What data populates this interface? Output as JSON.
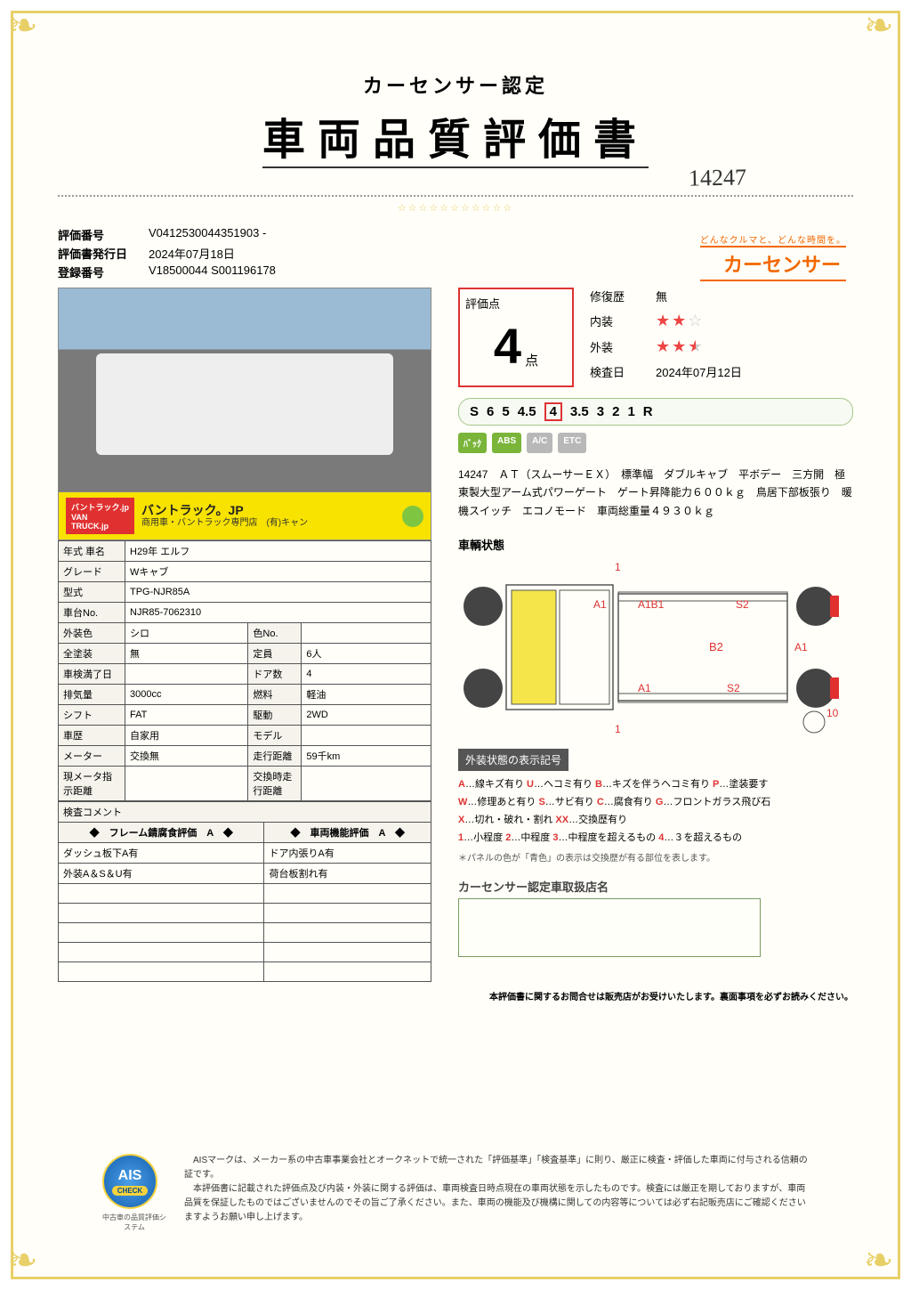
{
  "doc": {
    "subtitle": "カーセンサー認定",
    "title": "車両品質評価書",
    "handwritten": "14247",
    "stars_divider": "☆☆☆☆☆☆☆☆☆☆☆"
  },
  "brand": {
    "tagline": "どんなクルマと、どんな時間を。",
    "logo": "カーセンサー"
  },
  "meta": {
    "eval_no_label": "評価番号",
    "eval_no": "V0412530044351903 -",
    "issue_label": "評価書発行日",
    "issue_date": "2024年07月18日",
    "reg_label": "登録番号",
    "reg_no": "V18500044 S001196178"
  },
  "banner": {
    "logo_top": "バントラック.jp",
    "logo_main": "VAN",
    "logo_sub": "TRUCK.jp",
    "jp": "バントラック。JP",
    "sub": "商用車・バントラック専門店　(有)キャン"
  },
  "spec": {
    "rows": [
      [
        "年式 車名",
        "H29年 エルフ",
        "",
        ""
      ],
      [
        "グレード",
        "Wキャブ",
        "",
        ""
      ],
      [
        "型式",
        "TPG-NJR85A",
        "",
        ""
      ],
      [
        "車台No.",
        "NJR85-7062310",
        "",
        ""
      ],
      [
        "外装色",
        "シロ",
        "色No.",
        ""
      ],
      [
        "全塗装",
        "無",
        "定員",
        "6人"
      ],
      [
        "車検満了日",
        "",
        "ドア数",
        "4"
      ],
      [
        "排気量",
        "3000cc",
        "燃料",
        "軽油"
      ],
      [
        "シフト",
        "FAT",
        "駆動",
        "2WD"
      ],
      [
        "車歴",
        "自家用",
        "モデル",
        ""
      ],
      [
        "メーター",
        "交換無",
        "走行距離",
        "59千km"
      ],
      [
        "現メータ指示距離",
        "",
        "交換時走行距離",
        ""
      ]
    ],
    "comment_header": "検査コメント",
    "eval_headers": [
      "◆　フレーム錆腐食評価　A　◆",
      "◆　車両機能評価　A　◆"
    ],
    "comments": [
      [
        "ダッシュ板下A有",
        "ドア内張りA有"
      ],
      [
        "外装A＆S＆U有",
        "荷台板割れ有"
      ],
      [
        "",
        ""
      ],
      [
        "",
        ""
      ],
      [
        "",
        ""
      ],
      [
        "",
        ""
      ],
      [
        "",
        ""
      ]
    ]
  },
  "score": {
    "box_label": "評価点",
    "value": "4",
    "unit": "点",
    "repair_label": "修復歴",
    "repair_value": "無",
    "interior_label": "内装",
    "interior_stars": 2,
    "exterior_label": "外装",
    "exterior_stars": 2.5,
    "inspect_label": "検査日",
    "inspect_date": "2024年07月12日",
    "scale": [
      "S",
      "6",
      "5",
      "4.5",
      "4",
      "3.5",
      "3",
      "2",
      "1",
      "R"
    ],
    "scale_active": "4",
    "badges": [
      "ﾊﾞｯｸ",
      "ABS",
      "A/C",
      "ETC"
    ]
  },
  "description": "14247　ＡＴ（スムーサーＥＸ）　標準幅　ダブルキャブ　平ボデー　三方開　極東製大型アーム式パワーゲート　ゲート昇降能力６００ｋｇ　鳥居下部板張り　暖機スイッチ　エコノモード　車両総重量４９３０ｋｇ",
  "diagram": {
    "title": "車輌状態",
    "marks": {
      "front_top": "1",
      "a1": "A1",
      "a1b1": "A1B1",
      "s2_top": "S2",
      "b2": "B2",
      "a1_right": "A1",
      "a1_bl": "A1",
      "s2_bot": "S2",
      "front_bot": "1",
      "ten": "10"
    }
  },
  "legend": {
    "header": "外装状態の表示記号",
    "lines": [
      [
        [
          "A",
          "…線キズ有り"
        ],
        [
          "U",
          "…ヘコミ有り"
        ],
        [
          "B",
          "…キズを伴うヘコミ有り"
        ],
        [
          "P",
          "…塗装要す"
        ]
      ],
      [
        [
          "W",
          "…修理あと有り"
        ],
        [
          "S",
          "…サビ有り"
        ],
        [
          "C",
          "…腐食有り"
        ],
        [
          "G",
          "…フロントガラス飛び石"
        ]
      ],
      [
        [
          "X",
          "…切れ・破れ・割れ"
        ],
        [
          "XX",
          "…交換歴有り"
        ]
      ],
      [
        [
          "1",
          "…小程度"
        ],
        [
          "2",
          "…中程度"
        ],
        [
          "3",
          "…中程度を超えるもの"
        ],
        [
          "4",
          "…３を超えるもの"
        ]
      ]
    ],
    "note": "＊パネルの色が「青色」の表示は交換歴が有る部位を表します。"
  },
  "dealer": {
    "label": "カーセンサー認定車取扱店名"
  },
  "footer": {
    "ais": "AIS",
    "ais_check": "CHECK",
    "ais_sub": "中古車の品質評価システム",
    "text": "　AISマークは、メーカー系の中古車事業会社とオークネットで統一された「評価基準」「検査基準」に則り、厳正に検査・評価した車両に付与される信頼の証です。\n　本評価書に記載された評価点及び内装・外装に関する評価は、車両検査日時点現在の車両状態を示したものです。検査には厳正を期しておりますが、車両品質を保証したものではございませんのでその旨ご了承ください。また、車両の機能及び機構に関しての内容等については必ず右記販売店にご確認くださいますようお願い申し上げます。",
    "note": "本評価書に関するお問合せは販売店がお受けいたします。裏面事項を必ずお読みください。"
  }
}
